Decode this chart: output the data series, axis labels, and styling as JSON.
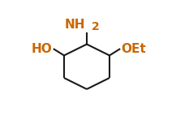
{
  "background_color": "#ffffff",
  "line_color": "#1a1a1a",
  "text_color": "#cc6600",
  "label_NH": "NH",
  "label_2": "2",
  "label_HO": "HO",
  "label_OEt": "OEt",
  "figsize": [
    2.17,
    1.53
  ],
  "dpi": 100,
  "line_width": 1.5,
  "font_size": 11
}
